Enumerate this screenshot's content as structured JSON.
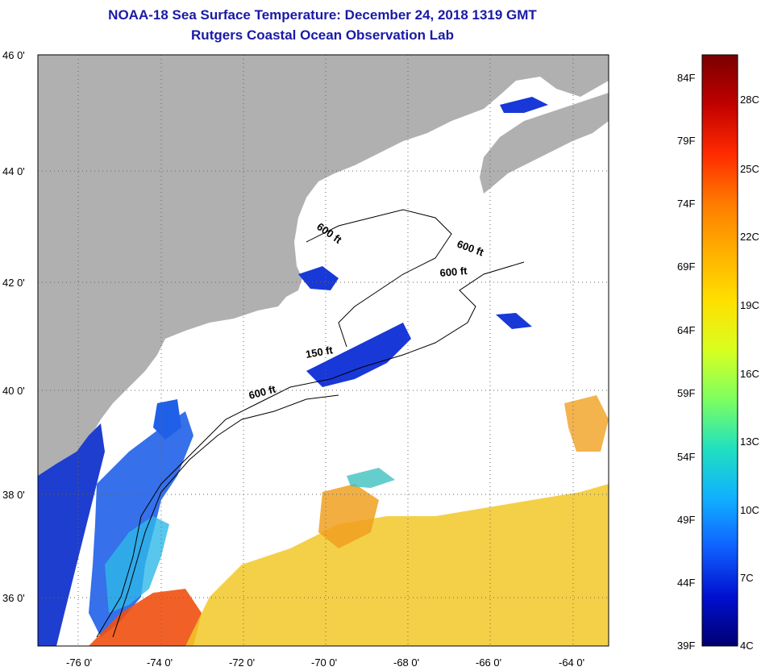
{
  "title": "NOAA-18 Sea Surface Temperature:  December 24, 2018 1319 GMT",
  "subtitle": "Rutgers Coastal Ocean Observation Lab",
  "lat_ticks": [
    "46 0'",
    "44 0'",
    "42 0'",
    "40 0'",
    "38 0'",
    "36 0'"
  ],
  "lon_ticks": [
    "-76 0'",
    "-74 0'",
    "-72 0'",
    "-70 0'",
    "-68 0'",
    "-66 0'",
    "-64 0'"
  ],
  "contour_labels": [
    "600 ft",
    "600 ft",
    "600 ft",
    "150 ft",
    "600 ft"
  ],
  "colorbar": {
    "f_labels": [
      "84F",
      "79F",
      "74F",
      "69F",
      "64F",
      "59F",
      "54F",
      "49F",
      "44F",
      "39F"
    ],
    "c_labels": [
      "28C",
      "25C",
      "22C",
      "19C",
      "16C",
      "13C",
      "10C",
      "7C",
      "4C"
    ],
    "colors": [
      "#7a0000",
      "#c00000",
      "#ff2a00",
      "#ff7a00",
      "#ffb000",
      "#ffe000",
      "#d8ff20",
      "#7cff60",
      "#20e0c0",
      "#10b0ff",
      "#1060ff",
      "#0010d0",
      "#000070"
    ]
  },
  "colors": {
    "land": "#b0b0b0",
    "ocean": "#ffffff",
    "title": "#1a1aa6",
    "cold_water": "#1838d8",
    "warm_water": "#f0c020",
    "hot_water": "#f05010"
  }
}
